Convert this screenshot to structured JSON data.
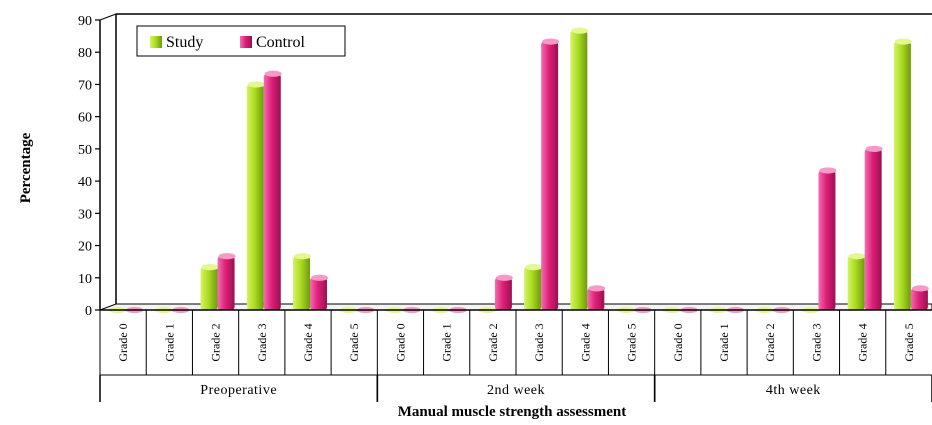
{
  "chart_data": {
    "type": "bar",
    "xlabel": "Manual muscle strength assessment",
    "ylabel": "Percentage",
    "ylim": [
      0,
      90
    ],
    "yticks": [
      0,
      10,
      20,
      30,
      40,
      50,
      60,
      70,
      80,
      90
    ],
    "grid": false,
    "legend_position": "top-left",
    "groups": [
      {
        "label": "Preoperative",
        "categories": [
          "Grade 0",
          "Grade 1",
          "Grade 2",
          "Grade 3",
          "Grade 4",
          "Grade 5"
        ]
      },
      {
        "label": "2nd week",
        "categories": [
          "Grade 0",
          "Grade 1",
          "Grade 2",
          "Grade 3",
          "Grade 4",
          "Grade 5"
        ]
      },
      {
        "label": "4th week",
        "categories": [
          "Grade 0",
          "Grade 1",
          "Grade 2",
          "Grade 3",
          "Grade 4",
          "Grade 5"
        ]
      }
    ],
    "series": [
      {
        "name": "Study",
        "color": "#aadd22",
        "values": [
          [
            0,
            0,
            13.3,
            70,
            16.7,
            0
          ],
          [
            0,
            0,
            0,
            13.3,
            86.7,
            0
          ],
          [
            0,
            0,
            0,
            0,
            16.7,
            83.3
          ]
        ]
      },
      {
        "name": "Control",
        "color": "#e0207a",
        "values": [
          [
            0,
            0,
            16.7,
            73.3,
            10,
            0
          ],
          [
            0,
            0,
            10,
            83.3,
            6.7,
            0
          ],
          [
            0,
            0,
            0,
            43.3,
            50,
            6.7
          ]
        ]
      }
    ]
  }
}
